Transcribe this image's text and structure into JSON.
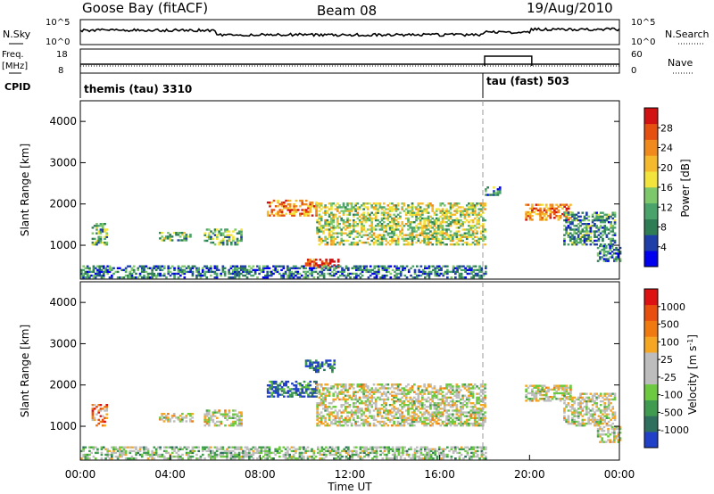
{
  "header": {
    "station": "Goose Bay (fitACF)",
    "beam": "Beam 08",
    "date": "19/Aug/2010"
  },
  "noise_panel": {
    "left_label": "N.Sky",
    "right_label": "N.Search",
    "left_ticks": [
      "10^5",
      "10^0"
    ],
    "right_ticks": [
      "10^5",
      "10^0"
    ]
  },
  "freq_panel": {
    "left_label_top": "Freq.",
    "left_label_bottom": "[MHz]",
    "right_label": "Nave",
    "left_ticks": [
      "18",
      "8"
    ],
    "right_ticks": [
      "60",
      "0"
    ]
  },
  "cpid_panel": {
    "label": "CPID",
    "modes": [
      {
        "name": "themis (tau) 3310",
        "start_hour": 0,
        "end_hour": 18
      },
      {
        "name": "tau (fast) 503",
        "start_hour": 18,
        "end_hour": 24
      }
    ]
  },
  "time_axis": {
    "label": "Time UT",
    "ticks": [
      "00:00",
      "04:00",
      "08:00",
      "12:00",
      "16:00",
      "20:00",
      "00:00"
    ]
  },
  "chart_data": [
    {
      "type": "heatmap",
      "title": "",
      "xlabel": "Time UT",
      "ylabel": "Slant Range [km]",
      "xlim_hours": [
        0,
        24
      ],
      "ylim": [
        180,
        4500
      ],
      "y_ticks": [
        "1000",
        "2000",
        "3000",
        "4000"
      ],
      "colorbar": {
        "label": "Power [dB]",
        "ticks": [
          "28",
          "24",
          "20",
          "16",
          "12",
          "8",
          "4"
        ],
        "colors": [
          "#0000ee",
          "#1f3fa8",
          "#2e7d55",
          "#4aa36a",
          "#7dc86a",
          "#f2e43a",
          "#f5b92e",
          "#f08a1c",
          "#e55010",
          "#d21212"
        ]
      },
      "echo_regions": [
        {
          "t0": 0.5,
          "t1": 1.2,
          "r0": 1000,
          "r1": 1500,
          "level": 0.35
        },
        {
          "t0": 3.5,
          "t1": 5.0,
          "r0": 1100,
          "r1": 1300,
          "level": 0.4
        },
        {
          "t0": 5.5,
          "t1": 7.2,
          "r0": 1000,
          "r1": 1400,
          "level": 0.4
        },
        {
          "t0": 8.3,
          "t1": 10.5,
          "r0": 1700,
          "r1": 2100,
          "level": 0.75
        },
        {
          "t0": 10.5,
          "t1": 18.0,
          "r0": 1000,
          "r1": 2000,
          "level": 0.5
        },
        {
          "t0": 10.0,
          "t1": 11.5,
          "r0": 450,
          "r1": 650,
          "level": 0.9
        },
        {
          "t0": 0.0,
          "t1": 18.0,
          "r0": 200,
          "r1": 500,
          "level": 0.25
        },
        {
          "t0": 18.0,
          "t1": 18.7,
          "r0": 2200,
          "r1": 2400,
          "level": 0.3
        },
        {
          "t0": 19.8,
          "t1": 21.8,
          "r0": 1600,
          "r1": 2000,
          "level": 0.75
        },
        {
          "t0": 21.5,
          "t1": 23.8,
          "r0": 1000,
          "r1": 1800,
          "level": 0.3
        },
        {
          "t0": 23.0,
          "t1": 24.0,
          "r0": 600,
          "r1": 1000,
          "level": 0.25
        }
      ]
    },
    {
      "type": "heatmap",
      "title": "",
      "xlabel": "Time UT",
      "ylabel": "Slant Range [km]",
      "xlim_hours": [
        0,
        24
      ],
      "ylim": [
        180,
        4500
      ],
      "y_ticks": [
        "1000",
        "2000",
        "3000",
        "4000"
      ],
      "colorbar": {
        "label": "Velocity [m s^-1]",
        "ticks": [
          "1000",
          "500",
          "100",
          "25",
          "-25",
          "-100",
          "-500",
          "-1000"
        ],
        "colors": [
          "#2040c8",
          "#2e6f5e",
          "#3f9b50",
          "#6cc940",
          "#bdbdbd",
          "#bdbdbd",
          "#f5a623",
          "#f07a10",
          "#e84e0e",
          "#dd1111"
        ]
      },
      "echo_regions": [
        {
          "t0": 0.5,
          "t1": 1.2,
          "r0": 1000,
          "r1": 1500,
          "level": 0.75
        },
        {
          "t0": 3.5,
          "t1": 5.0,
          "r0": 1100,
          "r1": 1300,
          "level": 0.5
        },
        {
          "t0": 5.5,
          "t1": 7.2,
          "r0": 1000,
          "r1": 1400,
          "level": 0.5
        },
        {
          "t0": 8.3,
          "t1": 10.5,
          "r0": 1700,
          "r1": 2100,
          "level": 0.15
        },
        {
          "t0": 10.0,
          "t1": 11.3,
          "r0": 2300,
          "r1": 2600,
          "level": 0.1
        },
        {
          "t0": 10.5,
          "t1": 18.0,
          "r0": 1000,
          "r1": 2000,
          "level": 0.5
        },
        {
          "t0": 0.0,
          "t1": 18.0,
          "r0": 200,
          "r1": 500,
          "level": 0.4
        },
        {
          "t0": 19.8,
          "t1": 21.8,
          "r0": 1600,
          "r1": 2000,
          "level": 0.5
        },
        {
          "t0": 21.5,
          "t1": 23.8,
          "r0": 1000,
          "r1": 1800,
          "level": 0.5
        },
        {
          "t0": 23.0,
          "t1": 24.0,
          "r0": 600,
          "r1": 1000,
          "level": 0.5
        }
      ]
    }
  ]
}
